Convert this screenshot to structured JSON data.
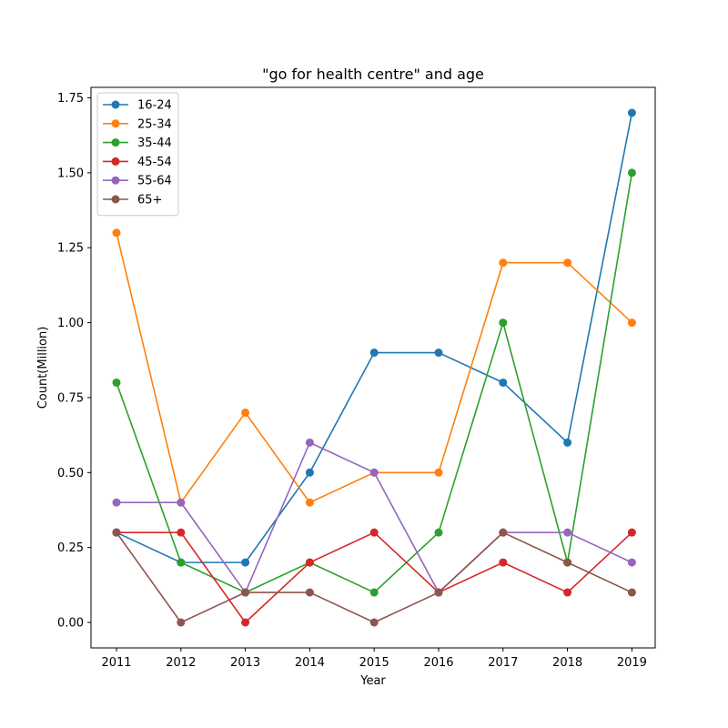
{
  "chart_data": {
    "type": "line",
    "title": "\"go for health centre\" and age",
    "xlabel": "Year",
    "ylabel": "Count(Million)",
    "x": [
      "2011",
      "2012",
      "2013",
      "2014",
      "2015",
      "2016",
      "2017",
      "2018",
      "2019"
    ],
    "ylim": [
      -0.085,
      1.785
    ],
    "yticks": [
      "0.00",
      "0.25",
      "0.50",
      "0.75",
      "1.00",
      "1.25",
      "1.50",
      "1.75"
    ],
    "grid": false,
    "legend_position": "upper-left",
    "series": [
      {
        "name": "16-24",
        "color": "#1f77b4",
        "values": [
          0.3,
          0.2,
          0.2,
          0.5,
          0.9,
          0.9,
          0.8,
          0.6,
          1.7
        ]
      },
      {
        "name": "25-34",
        "color": "#ff7f0e",
        "values": [
          1.3,
          0.4,
          0.7,
          0.4,
          0.5,
          0.5,
          1.2,
          1.2,
          1.0
        ]
      },
      {
        "name": "35-44",
        "color": "#2ca02c",
        "values": [
          0.8,
          0.2,
          0.1,
          0.2,
          0.1,
          0.3,
          1.0,
          0.2,
          1.5
        ]
      },
      {
        "name": "45-54",
        "color": "#d62728",
        "values": [
          0.3,
          0.3,
          0.0,
          0.2,
          0.3,
          0.1,
          0.2,
          0.1,
          0.3
        ]
      },
      {
        "name": "55-64",
        "color": "#9467bd",
        "values": [
          0.4,
          0.4,
          0.1,
          0.6,
          0.5,
          0.1,
          0.3,
          0.3,
          0.2
        ]
      },
      {
        "name": "65+",
        "color": "#8c564b",
        "values": [
          0.3,
          0.0,
          0.1,
          0.1,
          0.0,
          0.1,
          0.3,
          0.2,
          0.1
        ]
      }
    ]
  }
}
